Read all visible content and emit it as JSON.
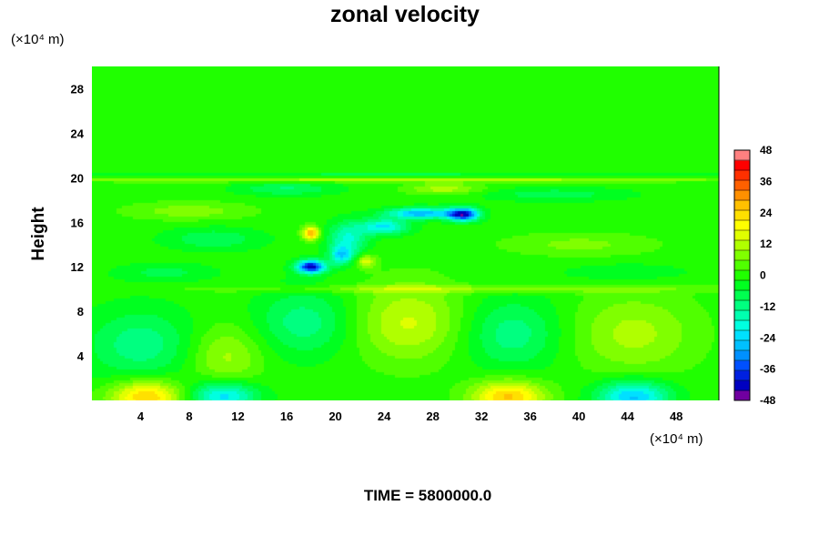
{
  "chart_data": {
    "type": "heatmap",
    "title": "zonal velocity",
    "ylabel": "Height",
    "x_unit": "(×10⁴ m)",
    "y_unit": "(×10⁴ m)",
    "xlim": [
      0,
      51.5
    ],
    "ylim": [
      0,
      30
    ],
    "x_ticks": [
      4,
      8,
      12,
      16,
      20,
      24,
      28,
      32,
      36,
      40,
      44,
      48
    ],
    "y_ticks": [
      4,
      8,
      12,
      16,
      20,
      24,
      28
    ],
    "time_label": "TIME = 5800000.0",
    "colorbar": {
      "min": -48,
      "max": 48,
      "step": 4,
      "tick_labels": [
        48,
        36,
        24,
        12,
        0,
        -12,
        -24,
        -36,
        -48
      ],
      "colors": [
        "#7000a0",
        "#0000c0",
        "#0020e0",
        "#0050ff",
        "#0090ff",
        "#00c0ff",
        "#00e0ff",
        "#00ffe0",
        "#00ffb0",
        "#00ff80",
        "#00ff50",
        "#00ff20",
        "#20ff00",
        "#50ff00",
        "#80ff00",
        "#b0ff00",
        "#e0ff00",
        "#ffff00",
        "#ffe000",
        "#ffc000",
        "#ff9000",
        "#ff6000",
        "#ff3000",
        "#ff0000",
        "#ff8080"
      ]
    },
    "field": {
      "background": 0,
      "features": [
        {
          "x": 4.5,
          "y": 0.3,
          "rx": 3.0,
          "ry": 1.5,
          "v": 26
        },
        {
          "x": 10.8,
          "y": 0.4,
          "rx": 2.8,
          "ry": 1.3,
          "v": -24
        },
        {
          "x": 34.2,
          "y": 0.3,
          "rx": 3.0,
          "ry": 1.5,
          "v": 26
        },
        {
          "x": 44.5,
          "y": 0.3,
          "rx": 3.0,
          "ry": 1.5,
          "v": -26
        },
        {
          "x": 4.0,
          "y": 5.0,
          "rx": 4.5,
          "ry": 3.2,
          "v": -12
        },
        {
          "x": 11.0,
          "y": 4.0,
          "rx": 3.0,
          "ry": 2.8,
          "v": 11
        },
        {
          "x": 17.5,
          "y": 7.0,
          "rx": 4.0,
          "ry": 3.0,
          "v": -12
        },
        {
          "x": 26.0,
          "y": 7.0,
          "rx": 4.5,
          "ry": 3.5,
          "v": 14
        },
        {
          "x": 34.5,
          "y": 6.0,
          "rx": 4.0,
          "ry": 3.2,
          "v": -12
        },
        {
          "x": 44.5,
          "y": 6.0,
          "rx": 5.0,
          "ry": 3.5,
          "v": 11
        },
        {
          "x": 18.0,
          "y": 12.0,
          "rx": 1.2,
          "ry": 0.6,
          "v": -42
        },
        {
          "x": 18.0,
          "y": 15.0,
          "rx": 0.7,
          "ry": 0.6,
          "v": 30
        },
        {
          "x": 30.5,
          "y": 16.7,
          "rx": 1.3,
          "ry": 0.6,
          "v": -40
        },
        {
          "x": 27.0,
          "y": 16.8,
          "rx": 2.8,
          "ry": 0.5,
          "v": -28
        },
        {
          "x": 24.0,
          "y": 15.6,
          "rx": 2.0,
          "ry": 0.7,
          "v": -22
        },
        {
          "x": 21.0,
          "y": 14.5,
          "rx": 1.6,
          "ry": 1.5,
          "v": -18
        },
        {
          "x": 22.5,
          "y": 12.5,
          "rx": 0.8,
          "ry": 0.6,
          "v": 16
        },
        {
          "x": 20.5,
          "y": 13.0,
          "rx": 1.0,
          "ry": 0.8,
          "v": -20
        },
        {
          "x": 29.0,
          "y": 19.0,
          "rx": 3.0,
          "ry": 0.5,
          "v": 12
        },
        {
          "x": 16.0,
          "y": 19.0,
          "rx": 4.0,
          "ry": 0.6,
          "v": -10
        },
        {
          "x": 8.0,
          "y": 17.0,
          "rx": 5.0,
          "ry": 0.8,
          "v": 8
        },
        {
          "x": 38.0,
          "y": 18.5,
          "rx": 6.0,
          "ry": 0.6,
          "v": -8
        },
        {
          "x": 10.0,
          "y": 14.5,
          "rx": 4.0,
          "ry": 1.0,
          "v": -9
        },
        {
          "x": 40.0,
          "y": 14.0,
          "rx": 6.0,
          "ry": 1.0,
          "v": 7
        },
        {
          "x": 30.0,
          "y": 10.0,
          "rx": 20.0,
          "ry": 0.35,
          "v": 9
        },
        {
          "x": 25.0,
          "y": 19.8,
          "rx": 30.0,
          "ry": 0.2,
          "v": 12
        },
        {
          "x": 25.0,
          "y": 20.3,
          "rx": 30.0,
          "ry": 0.2,
          "v": -6
        },
        {
          "x": 6.0,
          "y": 11.5,
          "rx": 4.0,
          "ry": 0.8,
          "v": -7
        },
        {
          "x": 44.0,
          "y": 11.5,
          "rx": 5.0,
          "ry": 0.8,
          "v": -6
        }
      ]
    }
  }
}
